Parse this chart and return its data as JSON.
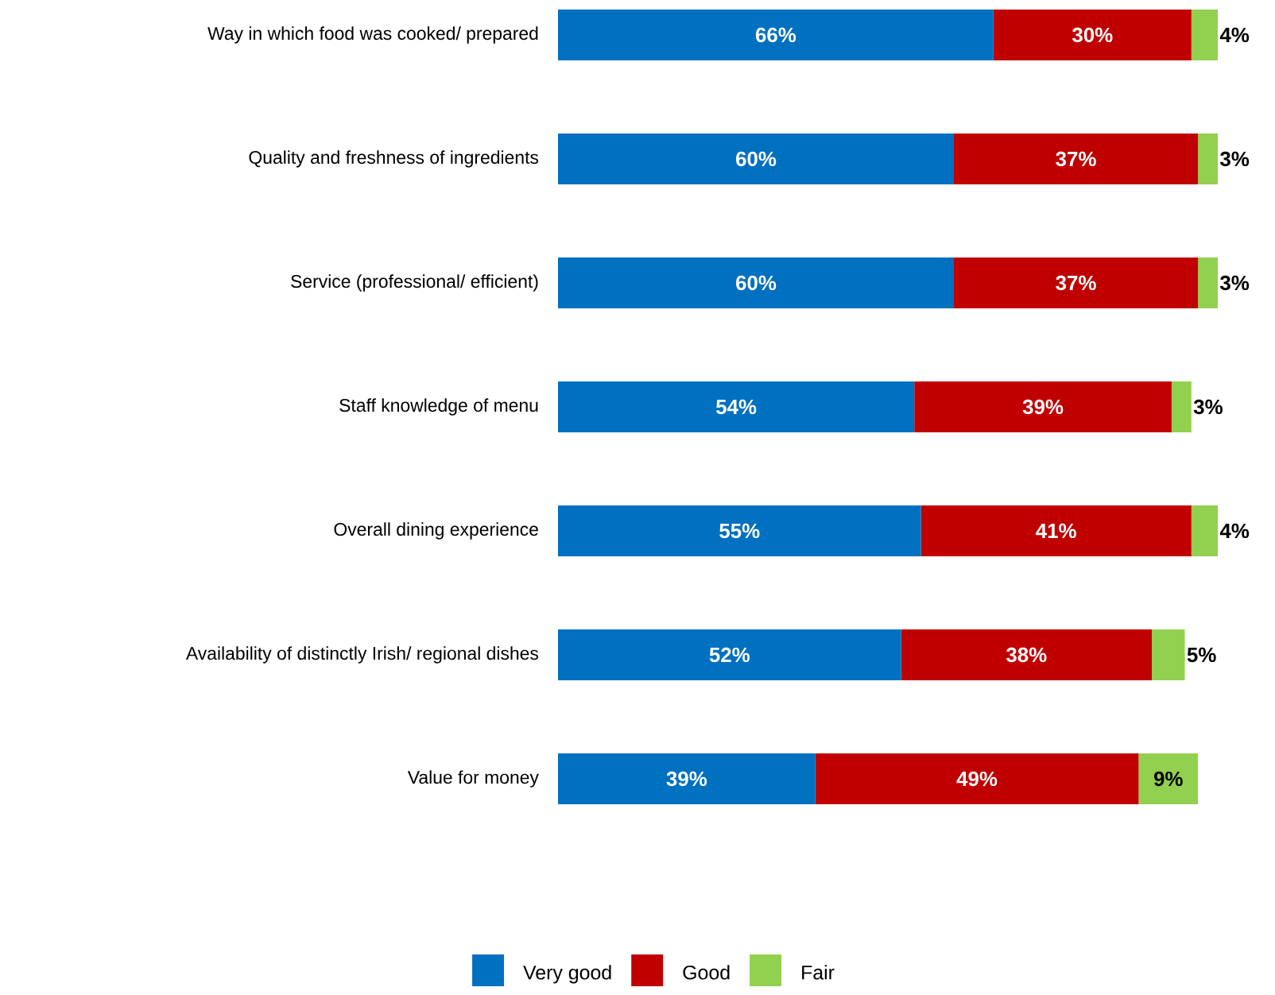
{
  "chart_data": {
    "type": "bar",
    "orientation": "horizontal",
    "stacked": true,
    "categories": [
      "Way in which food was cooked/ prepared",
      "Quality and freshness of ingredients",
      "Service (professional/ efficient)",
      "Staff knowledge of menu",
      "Overall dining experience",
      "Availability of distinctly Irish/ regional dishes",
      "Value for money"
    ],
    "series": [
      {
        "name": "Very good",
        "color": "#0070c0",
        "values": [
          66,
          60,
          60,
          54,
          55,
          52,
          39
        ],
        "value_labels": [
          "66%",
          "60%",
          "60%",
          "54%",
          "55%",
          "52%",
          "39%"
        ]
      },
      {
        "name": "Good",
        "color": "#c00000",
        "values": [
          30,
          37,
          37,
          39,
          41,
          38,
          49
        ],
        "value_labels": [
          "30%",
          "37%",
          "37%",
          "39%",
          "41%",
          "38%",
          "49%"
        ]
      },
      {
        "name": "Fair",
        "color": "#92d050",
        "values": [
          4,
          3,
          3,
          3,
          4,
          5,
          9
        ],
        "value_labels": [
          "4%",
          "3%",
          "3%",
          "3%",
          "4%",
          "5%",
          "9%"
        ]
      }
    ],
    "xlim": [
      0,
      100
    ],
    "tick_labels": "y",
    "legend": "bottom"
  }
}
